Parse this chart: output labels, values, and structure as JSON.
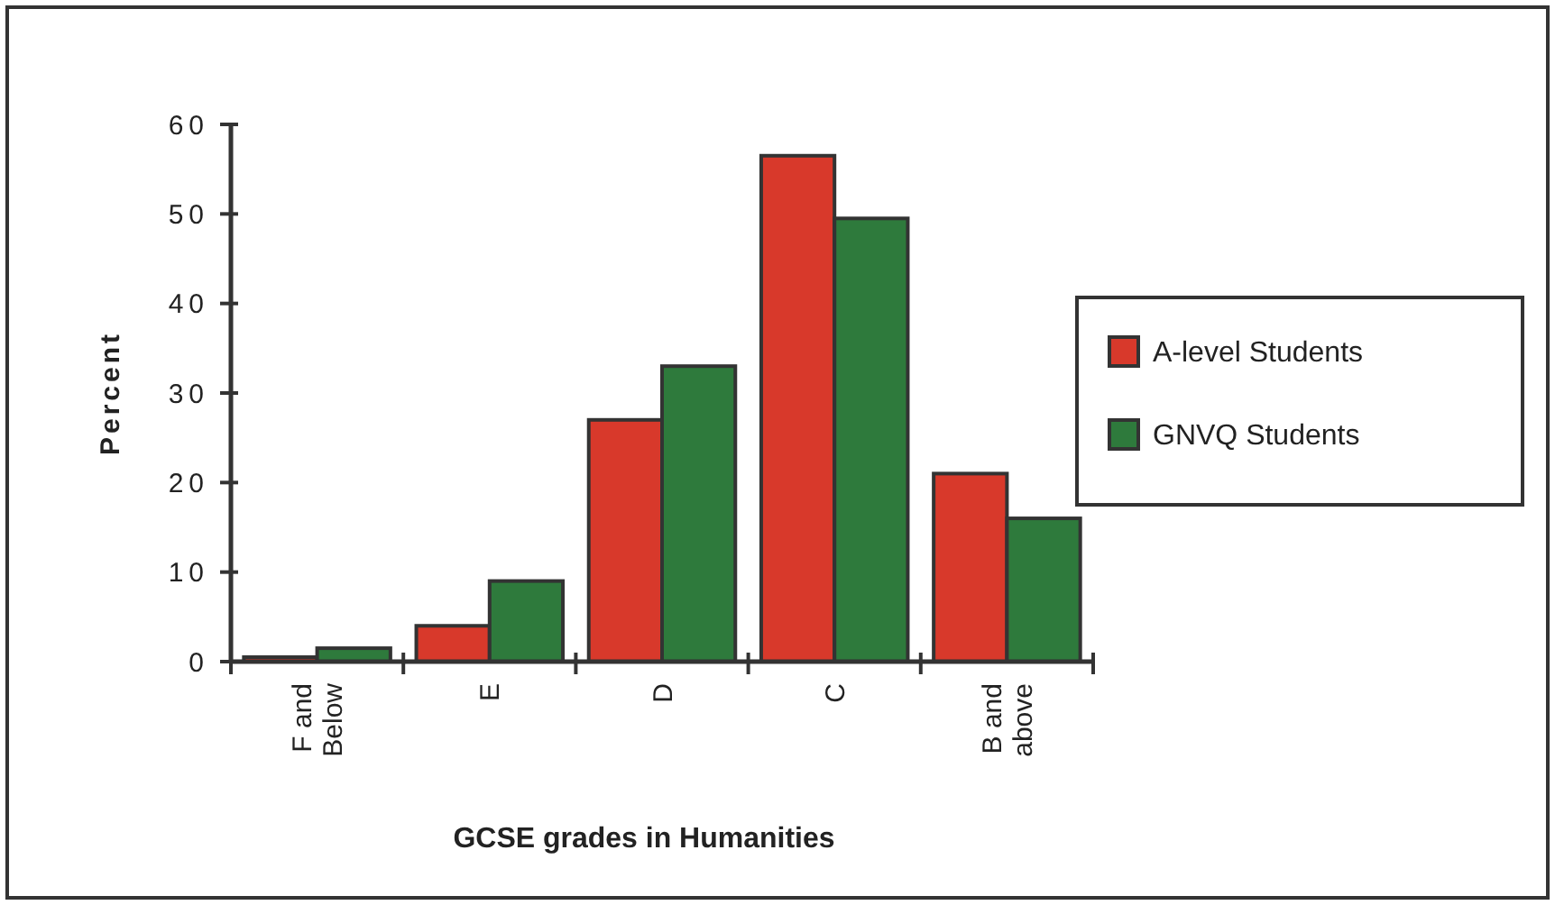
{
  "chart_data": {
    "type": "bar",
    "xlabel": "GCSE grades in Humanities",
    "ylabel": "Percent",
    "categories": [
      "F and Below",
      "E",
      "D",
      "C",
      "B and above"
    ],
    "series": [
      {
        "name": "A-level Students",
        "color": "#d8392b",
        "values": [
          0.5,
          4,
          27,
          56.5,
          21
        ]
      },
      {
        "name": "GNVQ Students",
        "color": "#2e7a3c",
        "values": [
          1.5,
          9,
          33,
          49.5,
          16
        ]
      }
    ],
    "ylim": [
      0,
      60
    ],
    "yticks": [
      0,
      10,
      20,
      30,
      40,
      50,
      60
    ],
    "grid": false,
    "legend": "right"
  }
}
